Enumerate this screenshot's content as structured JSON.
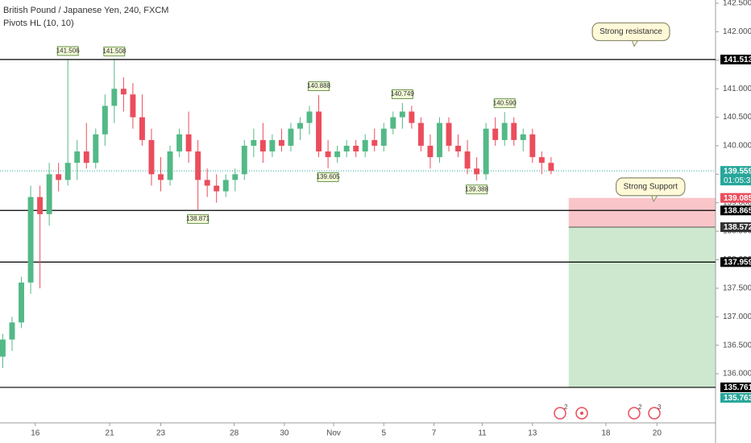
{
  "chart_data": {
    "type": "candlestick",
    "title": "British Pound / Japanese Yen, 240, FXCM",
    "subtitle": "Pivots HL (10, 10)",
    "up_color": "#53b987",
    "down_color": "#eb4d5c",
    "open": [
      136.3,
      136.6,
      136.9,
      137.6,
      139.1,
      138.8,
      139.5,
      139.4,
      139.7,
      139.9,
      139.7,
      140.2,
      140.7,
      141.0,
      140.9,
      140.5,
      140.1,
      139.5,
      139.4,
      139.9,
      140.2,
      139.9,
      139.4,
      139.3,
      139.2,
      139.4,
      139.5,
      140.0,
      140.1,
      139.9,
      140.1,
      140.0,
      140.3,
      140.4,
      140.6,
      139.9,
      139.8,
      139.9,
      140.0,
      139.9,
      140.1,
      140.0,
      140.3,
      140.5,
      140.6,
      140.4,
      140.0,
      139.8,
      140.4,
      140.0,
      139.9,
      139.6,
      139.5,
      140.3,
      140.1,
      140.4,
      140.1,
      140.2,
      139.8,
      139.7
    ],
    "high": [
      136.7,
      137.0,
      137.7,
      139.3,
      139.3,
      139.7,
      139.7,
      141.506,
      140.1,
      140.4,
      140.3,
      140.9,
      141.5,
      141.2,
      141.1,
      140.9,
      140.3,
      139.8,
      140.0,
      140.3,
      140.6,
      140.1,
      139.6,
      139.5,
      139.5,
      139.6,
      140.1,
      140.3,
      140.4,
      140.2,
      140.3,
      140.4,
      140.5,
      140.7,
      140.888,
      140.1,
      140.0,
      140.1,
      140.1,
      140.2,
      140.3,
      140.4,
      140.6,
      140.749,
      140.7,
      140.5,
      140.2,
      140.5,
      140.5,
      140.2,
      140.1,
      139.8,
      140.4,
      140.5,
      140.59,
      140.5,
      140.3,
      140.3,
      139.9,
      139.8
    ],
    "low": [
      136.1,
      136.4,
      136.8,
      137.4,
      137.5,
      138.6,
      139.2,
      139.3,
      139.4,
      139.6,
      139.6,
      140.0,
      140.4,
      140.6,
      140.3,
      140.0,
      139.3,
      139.2,
      139.3,
      139.8,
      139.7,
      138.871,
      139.1,
      139.0,
      139.1,
      139.2,
      139.4,
      139.8,
      139.7,
      139.8,
      139.9,
      139.9,
      140.1,
      140.2,
      139.8,
      139.605,
      139.7,
      139.8,
      139.8,
      139.8,
      139.9,
      139.9,
      140.2,
      140.3,
      140.3,
      139.9,
      139.6,
      139.7,
      139.9,
      139.8,
      139.5,
      139.388,
      139.4,
      140.0,
      140.0,
      140.0,
      139.9,
      139.7,
      139.5,
      139.5
    ],
    "close": [
      136.6,
      136.9,
      137.6,
      139.1,
      138.8,
      139.5,
      139.4,
      139.7,
      139.9,
      139.7,
      140.2,
      140.7,
      141.0,
      140.9,
      140.5,
      140.1,
      139.5,
      139.4,
      139.9,
      140.2,
      139.9,
      139.4,
      139.3,
      139.2,
      139.4,
      139.5,
      140.0,
      140.1,
      139.9,
      140.1,
      140.0,
      140.3,
      140.4,
      140.6,
      139.9,
      139.8,
      139.9,
      140.0,
      139.9,
      140.1,
      140.0,
      140.3,
      140.5,
      140.6,
      140.4,
      140.0,
      139.8,
      140.4,
      140.0,
      139.9,
      139.6,
      139.5,
      140.3,
      140.1,
      140.4,
      140.1,
      140.2,
      139.8,
      139.7,
      139.559
    ],
    "xlim": [
      -0.3,
      76.7
    ],
    "xticks": [
      {
        "value": 3.5,
        "label": "16"
      },
      {
        "value": 11.5,
        "label": "21"
      },
      {
        "value": 17,
        "label": "23"
      },
      {
        "value": 24.9,
        "label": "28"
      },
      {
        "value": 30.3,
        "label": "30"
      },
      {
        "value": 35.6,
        "label": "Nov"
      },
      {
        "value": 41,
        "label": "5"
      },
      {
        "value": 46.4,
        "label": "7"
      },
      {
        "value": 51.6,
        "label": "11"
      },
      {
        "value": 57,
        "label": "13"
      },
      {
        "value": 64.9,
        "label": "18"
      },
      {
        "value": 70.4,
        "label": "20"
      }
    ],
    "ylim": [
      135.138,
      142.557
    ],
    "yticks": [
      {
        "value": 136,
        "label": "136.000"
      },
      {
        "value": 136.5,
        "label": "136.500"
      },
      {
        "value": 137,
        "label": "137.000"
      },
      {
        "value": 137.5,
        "label": "137.500"
      },
      {
        "value": 138,
        "label": "138.000"
      },
      {
        "value": 138.5,
        "label": "138.500"
      },
      {
        "value": 139,
        "label": "139.000"
      },
      {
        "value": 139.5,
        "label": "139.500"
      },
      {
        "value": 140,
        "label": "140.000"
      },
      {
        "value": 140.5,
        "label": "140.500"
      },
      {
        "value": 141,
        "label": "141.000"
      },
      {
        "value": 141.5,
        "label": "141.500"
      },
      {
        "value": 142,
        "label": "142.000"
      },
      {
        "value": 142.5,
        "label": "142.500"
      }
    ],
    "levels": [
      141.513,
      138.865,
      137.959,
      135.761
    ],
    "pivots": [
      {
        "index": 7,
        "value": 141.506,
        "label": "141.506",
        "kind": "high"
      },
      {
        "index": 12,
        "value": 141.5,
        "label": "141.508",
        "kind": "high"
      },
      {
        "index": 34,
        "value": 140.888,
        "label": "140.888",
        "kind": "high"
      },
      {
        "index": 43,
        "value": 140.749,
        "label": "140.749",
        "kind": "high"
      },
      {
        "index": 54,
        "value": 140.59,
        "label": "140.590",
        "kind": "high"
      },
      {
        "index": 21,
        "value": 138.871,
        "label": "138.871",
        "kind": "low"
      },
      {
        "index": 35,
        "value": 139.605,
        "label": "139.605",
        "kind": "low"
      },
      {
        "index": 51,
        "value": 139.388,
        "label": "139.388",
        "kind": "low"
      }
    ],
    "position": {
      "start": 60.9,
      "stop": 139.085,
      "entry": 138.572,
      "target": 135.761
    },
    "callouts": [
      {
        "text": "Strong resistance",
        "value": 142.0,
        "index": 67.6
      },
      {
        "text": "Strong Support",
        "value": 139.28,
        "index": 69.7
      }
    ],
    "price_tags": [
      {
        "value": 141.513,
        "label": "141.513",
        "color": "#000000"
      },
      {
        "value": 139.559,
        "label": "139.559",
        "color": "#26a69a",
        "note": "01:05:37"
      },
      {
        "value": 139.085,
        "label": "139.085",
        "color": "#eb4d5c"
      },
      {
        "value": 138.865,
        "label": "138.865",
        "color": "#000000"
      },
      {
        "value": 138.572,
        "label": "138.572",
        "color": "#333333"
      },
      {
        "value": 137.959,
        "label": "137.959",
        "color": "#000000"
      },
      {
        "value": 135.761,
        "label": "135.761",
        "color": "#000000"
      },
      {
        "value": 135.763,
        "label": "135.763",
        "color": "#26a69a"
      }
    ],
    "events": [
      "2",
      "2",
      "3"
    ]
  }
}
